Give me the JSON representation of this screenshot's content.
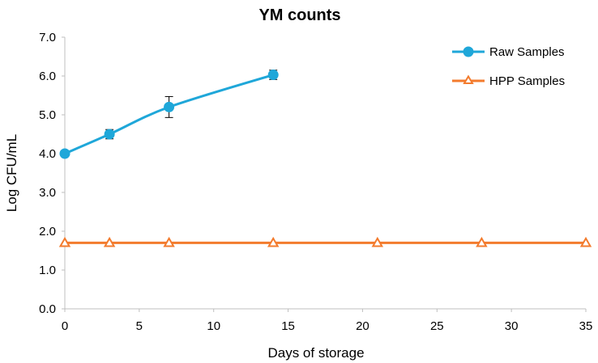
{
  "chart_data": {
    "type": "line",
    "title": "YM counts",
    "xlabel": "Days of storage",
    "ylabel": "Log CFU/mL",
    "xlim": [
      0,
      35
    ],
    "ylim": [
      0.0,
      7.0
    ],
    "x_ticks": [
      "0",
      "5",
      "10",
      "15",
      "20",
      "25",
      "30",
      "35"
    ],
    "y_ticks": [
      "0.0",
      "1.0",
      "2.0",
      "3.0",
      "4.0",
      "5.0",
      "6.0",
      "7.0"
    ],
    "grid": false,
    "legend": "top-right",
    "series": [
      {
        "name": "Raw Samples",
        "color": "#1fa7d9",
        "marker": "circle",
        "x": [
          0,
          3,
          7,
          14
        ],
        "values": [
          4.0,
          4.5,
          5.2,
          6.03
        ],
        "error": [
          0.0,
          0.12,
          0.27,
          0.12
        ]
      },
      {
        "name": "HPP Samples",
        "color": "#f37b2d",
        "marker": "triangle-open",
        "x": [
          0,
          3,
          7,
          14,
          21,
          28,
          35
        ],
        "values": [
          1.7,
          1.7,
          1.7,
          1.7,
          1.7,
          1.7,
          1.7
        ]
      }
    ]
  }
}
